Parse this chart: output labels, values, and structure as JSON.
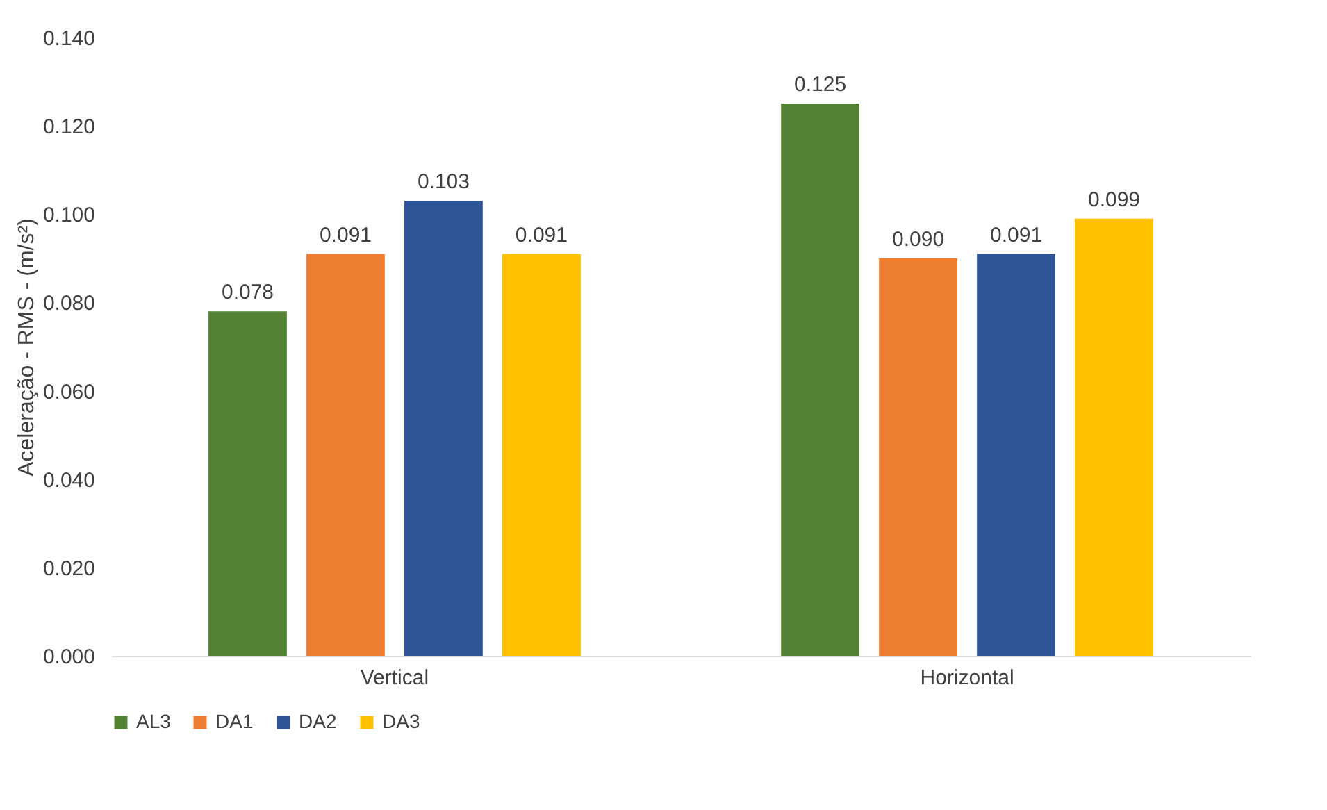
{
  "chart_data": {
    "type": "bar",
    "ylabel": "Aceleração - RMS - (m/s²)",
    "categories": [
      "Vertical",
      "Horizontal"
    ],
    "series": [
      {
        "name": "AL3",
        "color": "#548235",
        "values": [
          0.078,
          0.125
        ]
      },
      {
        "name": "DA1",
        "color": "#ed7d31",
        "values": [
          0.091,
          0.09
        ]
      },
      {
        "name": "DA2",
        "color": "#2f5597",
        "values": [
          0.103,
          0.091
        ]
      },
      {
        "name": "DA3",
        "color": "#ffc000",
        "values": [
          0.091,
          0.099
        ]
      }
    ],
    "value_labels": [
      [
        "0.078",
        "0.125"
      ],
      [
        "0.091",
        "0.090"
      ],
      [
        "0.103",
        "0.091"
      ],
      [
        "0.091",
        "0.099"
      ]
    ],
    "ylim": [
      0,
      0.14
    ],
    "yticks": [
      {
        "value": 0,
        "label": "0.000"
      },
      {
        "value": 0.02,
        "label": "0.020"
      },
      {
        "value": 0.04,
        "label": "0.040"
      },
      {
        "value": 0.06,
        "label": "0.060"
      },
      {
        "value": 0.08,
        "label": "0.080"
      },
      {
        "value": 0.1,
        "label": "0.100"
      },
      {
        "value": 0.12,
        "label": "0.120"
      },
      {
        "value": 0.14,
        "label": "0.140"
      }
    ],
    "grid": false,
    "legend": "bottom"
  }
}
